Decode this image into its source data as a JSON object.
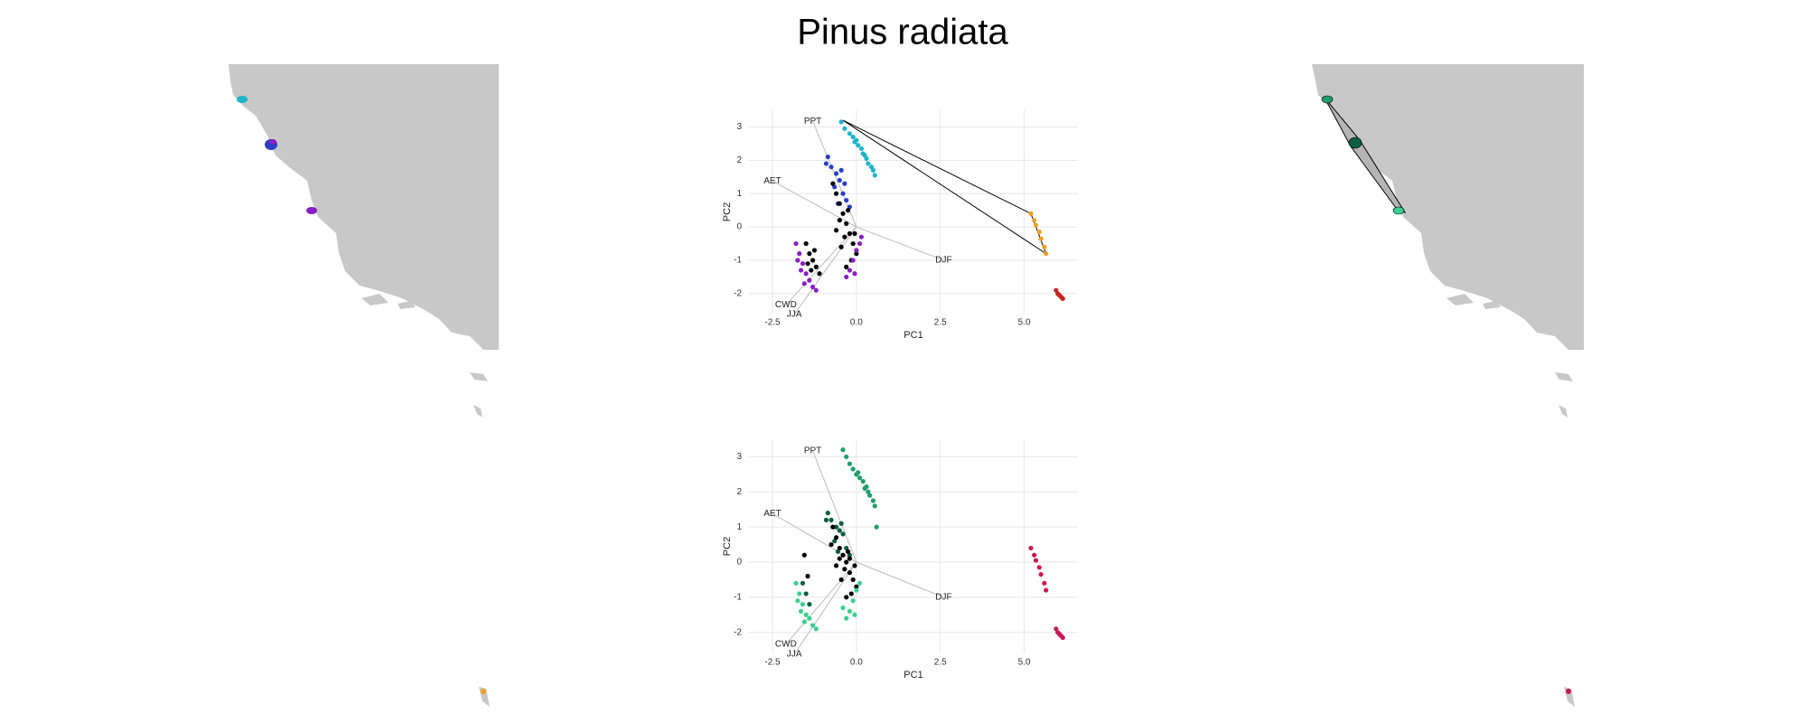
{
  "title": "Pinus radiata",
  "chart_data": [
    {
      "type": "scatter",
      "xlabel": "PC1",
      "ylabel": "PC2",
      "xlim": [
        -3.2,
        6.6
      ],
      "ylim": [
        -2.6,
        3.5
      ],
      "xticks": [
        {
          "value": -2.5,
          "label": "-2.5"
        },
        {
          "value": 0,
          "label": "0.0"
        },
        {
          "value": 2.5,
          "label": "2.5"
        },
        {
          "value": 5,
          "label": "5.0"
        }
      ],
      "yticks": [
        -2,
        -1,
        0,
        1,
        2,
        3
      ],
      "grid": true,
      "loadings": [
        {
          "label": "PPT",
          "x": -1.3,
          "y": 3.17
        },
        {
          "label": "AET",
          "x": -2.5,
          "y": 1.38
        },
        {
          "label": "DJF",
          "x": 2.6,
          "y": -1.0
        },
        {
          "label": "CWD",
          "x": -2.1,
          "y": -2.34
        },
        {
          "label": "JJA",
          "x": -1.85,
          "y": -2.62
        }
      ],
      "hull": {
        "x": [
          -0.4,
          5.2,
          5.65,
          -0.4
        ],
        "y": [
          3.2,
          0.4,
          -0.8,
          3.2
        ]
      },
      "series": [
        {
          "color": "#1fb5c9",
          "x": [
            -0.45,
            -0.35,
            -0.2,
            -0.1,
            0,
            0.05,
            0.15,
            0.2,
            0.3,
            0.35,
            0.45,
            0.5,
            0.55,
            -0.05,
            0.25
          ],
          "y": [
            3.15,
            2.95,
            2.8,
            2.7,
            2.6,
            2.45,
            2.35,
            2.2,
            2.05,
            1.9,
            1.8,
            1.7,
            1.55,
            2.55,
            2.15
          ]
        },
        {
          "color": "#2a3fc4",
          "x": [
            -0.85,
            -0.75,
            -0.6,
            -0.5,
            -0.65,
            -0.4,
            -0.3,
            -0.55,
            -0.2,
            -0.9,
            -0.45,
            -0.35
          ],
          "y": [
            2.1,
            1.8,
            1.6,
            1.4,
            1.2,
            1.0,
            0.8,
            0.7,
            0.6,
            1.9,
            1.7,
            1.3
          ]
        },
        {
          "color": "#000000",
          "x": [
            -0.7,
            -0.6,
            -0.5,
            -0.4,
            -0.3,
            -0.2,
            -0.1,
            0,
            -0.5,
            -0.35,
            -0.25,
            -0.15,
            -0.45,
            -0.05,
            -1.5,
            -1.4,
            -1.3,
            -1.2,
            -1.1,
            -1.45,
            -1.25,
            -1.35,
            -0.6,
            -0.3
          ],
          "y": [
            1.3,
            1.0,
            0.7,
            0.4,
            0.1,
            -0.2,
            -0.5,
            -0.8,
            0.2,
            -0.3,
            0.5,
            -1.0,
            -0.6,
            -0.2,
            -0.5,
            -0.8,
            -1.0,
            -1.2,
            -1.4,
            -1.1,
            -0.7,
            -1.3,
            -0.1,
            -1.2
          ]
        },
        {
          "color": "#8a1fc4",
          "x": [
            -1.8,
            -1.7,
            -1.6,
            -1.5,
            -1.4,
            -1.3,
            -1.2,
            -1.65,
            -1.55,
            -0.3,
            -0.2,
            -0.1,
            0,
            0.1,
            0.15,
            -0.05,
            -1.75
          ],
          "y": [
            -0.5,
            -0.8,
            -1.1,
            -1.4,
            -1.6,
            -1.8,
            -1.9,
            -1.3,
            -1.7,
            -1.5,
            -1.3,
            -1.0,
            -0.7,
            -0.5,
            -0.3,
            -1.4,
            -1.0
          ]
        },
        {
          "color": "#f0a020",
          "x": [
            5.2,
            5.3,
            5.35,
            5.45,
            5.5,
            5.6,
            5.65
          ],
          "y": [
            0.4,
            0.2,
            0.05,
            -0.15,
            -0.35,
            -0.6,
            -0.8
          ]
        },
        {
          "color": "#cc2222",
          "x": [
            5.95,
            6.0,
            6.05,
            6.1,
            6.15
          ],
          "y": [
            -1.9,
            -2.0,
            -2.05,
            -2.1,
            -2.15
          ]
        }
      ]
    },
    {
      "type": "scatter",
      "xlabel": "PC1",
      "ylabel": "PC2",
      "xlim": [
        -3.2,
        6.6
      ],
      "ylim": [
        -2.6,
        3.5
      ],
      "xticks": [
        {
          "value": -2.5,
          "label": "-2.5"
        },
        {
          "value": 0,
          "label": "0.0"
        },
        {
          "value": 2.5,
          "label": "2.5"
        },
        {
          "value": 5,
          "label": "5.0"
        }
      ],
      "yticks": [
        -2,
        -1,
        0,
        1,
        2,
        3
      ],
      "grid": true,
      "loadings": [
        {
          "label": "PPT",
          "x": -1.3,
          "y": 3.17
        },
        {
          "label": "AET",
          "x": -2.5,
          "y": 1.38
        },
        {
          "label": "DJF",
          "x": 2.6,
          "y": -1.0
        },
        {
          "label": "CWD",
          "x": -2.1,
          "y": -2.34
        },
        {
          "label": "JJA",
          "x": -1.85,
          "y": -2.62
        }
      ],
      "series": [
        {
          "color": "#1f9e6a",
          "x": [
            -0.4,
            -0.3,
            -0.2,
            -0.1,
            0,
            0.1,
            0.2,
            0.3,
            0.35,
            0.4,
            0.5,
            0.55,
            0.6,
            0.05,
            0.25
          ],
          "y": [
            3.2,
            3.0,
            2.8,
            2.65,
            2.5,
            2.4,
            2.3,
            2.15,
            2.0,
            1.9,
            1.75,
            1.6,
            1.0,
            2.55,
            2.1
          ]
        },
        {
          "color": "#0b5e40",
          "x": [
            -0.85,
            -0.75,
            -0.6,
            -0.5,
            -0.65,
            -0.4,
            -0.3,
            -0.55,
            -0.2,
            -0.9,
            -0.45,
            -1.6,
            -1.5,
            -1.4
          ],
          "y": [
            1.4,
            1.2,
            1.0,
            0.9,
            0.6,
            0.8,
            0.4,
            0.3,
            0.2,
            1.2,
            1.1,
            -0.6,
            -0.9,
            -1.2
          ]
        },
        {
          "color": "#000000",
          "x": [
            -0.7,
            -0.6,
            -0.5,
            -0.4,
            -0.3,
            -0.2,
            -0.1,
            0,
            -0.5,
            -0.35,
            -0.25,
            -0.15,
            -0.45,
            -0.05,
            -1.55,
            -1.45,
            -0.6,
            -0.3,
            -0.75,
            -0.2
          ],
          "y": [
            1.0,
            0.7,
            0.4,
            0.2,
            0.0,
            -0.3,
            -0.5,
            -0.7,
            0.1,
            -0.2,
            0.3,
            -0.9,
            -0.5,
            -0.1,
            0.2,
            -0.4,
            -0.1,
            -1.0,
            0.5,
            0.1
          ]
        },
        {
          "color": "#3ccf8e",
          "x": [
            -1.8,
            -1.7,
            -1.6,
            -1.5,
            -1.4,
            -1.3,
            -1.2,
            -1.65,
            -1.55,
            -0.3,
            -0.2,
            -0.1,
            0,
            0.1,
            -0.05,
            -1.75,
            -0.4
          ],
          "y": [
            -0.6,
            -0.9,
            -1.2,
            -1.5,
            -1.6,
            -1.8,
            -1.9,
            -1.4,
            -1.7,
            -1.6,
            -1.4,
            -1.1,
            -0.8,
            -0.6,
            -1.5,
            -1.1,
            -1.3
          ]
        },
        {
          "color": "#cc1655",
          "x": [
            5.2,
            5.3,
            5.35,
            5.45,
            5.5,
            5.6,
            5.65,
            5.95,
            6.0,
            6.05,
            6.1,
            6.15
          ],
          "y": [
            0.4,
            0.2,
            0.05,
            -0.15,
            -0.35,
            -0.6,
            -0.8,
            -1.9,
            -2.0,
            -2.05,
            -2.1,
            -2.15
          ]
        }
      ]
    }
  ]
}
